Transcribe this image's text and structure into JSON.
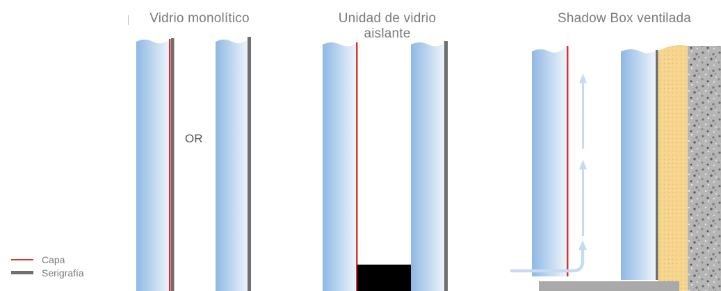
{
  "titles": {
    "monolithic": "Vidrio monolítico",
    "igu_line1": "Unidad de vidrio",
    "igu_line2": "aislante",
    "shadow_box": "Shadow Box ventilada"
  },
  "or_label": "OR",
  "legend": {
    "items": [
      {
        "label": "Capa",
        "color": "#d9322f"
      },
      {
        "label": "Serigrafía",
        "color": "#6f6f6f"
      }
    ]
  },
  "colors": {
    "glass_edge": "#8fb8e3",
    "glass_face": "#eef5fc",
    "coating": "#d9322f",
    "frit": "#6f6f6f",
    "spacer": "#000000",
    "insulation": "#f6d58e",
    "concrete": "#9a9a9a",
    "airflow_arrow": "#c7daf1",
    "ledge": "#a9a9a9"
  }
}
